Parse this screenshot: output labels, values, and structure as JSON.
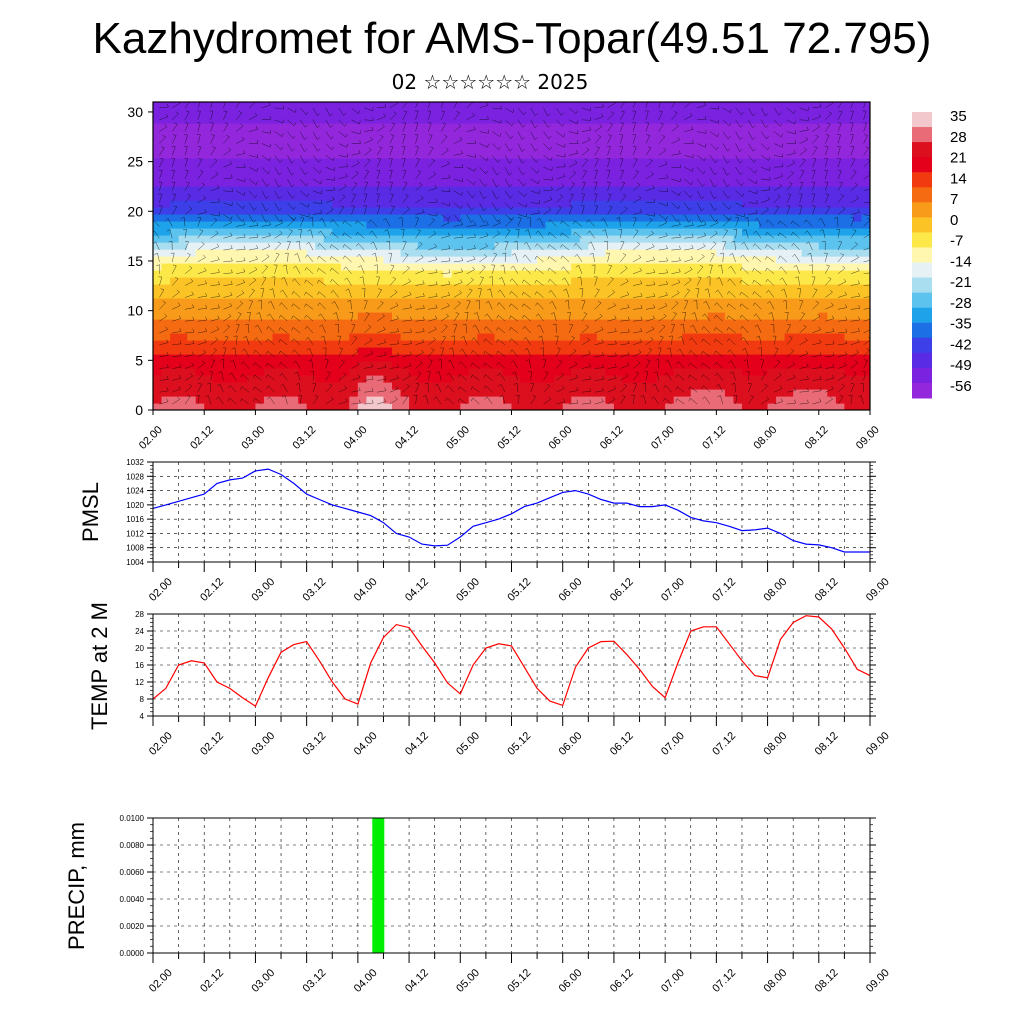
{
  "title": "Kazhydromet for AMS-Topar(49.51 72.795)",
  "subtitle": "02 ☆☆☆☆☆☆ 2025",
  "colors": {
    "pmsl_line": "#0000ff",
    "temp_line": "#ff0000",
    "precip_bar": "#00ee00",
    "frame": "#000000"
  },
  "time_ticks": [
    "02.00",
    "02.12",
    "03.00",
    "03.12",
    "04.00",
    "04.12",
    "05.00",
    "05.12",
    "06.00",
    "06.12",
    "07.00",
    "07.12",
    "08.00",
    "08.12",
    "09.00"
  ],
  "chart_data": [
    {
      "type": "heatmap",
      "name": "cross_section",
      "x": "time_ticks",
      "ylim": [
        0,
        31
      ],
      "yticks": [
        0,
        5,
        10,
        15,
        20,
        25,
        30
      ],
      "colorbar_labels": [
        "35",
        "28",
        "21",
        "14",
        "7",
        "0",
        "-7",
        "-14",
        "-21",
        "-28",
        "-35",
        "-42",
        "-49",
        "-56"
      ],
      "colorbar_colors": [
        "#f2c8cc",
        "#ea6b78",
        "#dc0f1e",
        "#e4001a",
        "#f23a10",
        "#f56b12",
        "#f89a1a",
        "#fbc326",
        "#fde84a",
        "#fff7b0",
        "#e6f1f5",
        "#a9ddf0",
        "#5cc3ef",
        "#1ea3ea",
        "#1d6fe6",
        "#3d3fe8",
        "#5a2be5",
        "#7a22e0",
        "#9327dc"
      ],
      "vertical_profile": [
        {
          "height": 0,
          "value": 28
        },
        {
          "height": 4,
          "value": 22
        },
        {
          "height": 8,
          "value": 10
        },
        {
          "height": 11,
          "value": 3
        },
        {
          "height": 14,
          "value": -7
        },
        {
          "height": 15.5,
          "value": -14
        },
        {
          "height": 18,
          "value": -30
        },
        {
          "height": 20,
          "value": -42
        },
        {
          "height": 23,
          "value": -52
        },
        {
          "height": 26,
          "value": -56
        },
        {
          "height": 31,
          "value": -54
        }
      ],
      "warm_cores": [
        {
          "x": 4.15,
          "value": 35
        },
        {
          "x": 7.6,
          "value": 33
        },
        {
          "x": 8.6,
          "value": 33
        }
      ],
      "has_wind_barbs": true
    },
    {
      "type": "line",
      "name": "pmsl",
      "ylabel": "PMSL",
      "ylim": [
        1004,
        1032
      ],
      "yticks": [
        1004,
        1008,
        1012,
        1016,
        1020,
        1024,
        1028,
        1032
      ],
      "grid": true,
      "x": [
        2.0,
        2.125,
        2.25,
        2.375,
        2.5,
        2.625,
        2.75,
        2.875,
        3.0,
        3.125,
        3.25,
        3.375,
        3.5,
        3.625,
        3.75,
        3.875,
        4.0,
        4.125,
        4.25,
        4.375,
        4.5,
        4.625,
        4.75,
        4.875,
        5.0,
        5.125,
        5.25,
        5.375,
        5.5,
        5.625,
        5.75,
        5.875,
        6.0,
        6.125,
        6.25,
        6.375,
        6.5,
        6.625,
        6.75,
        6.875,
        7.0,
        7.125,
        7.25,
        7.375,
        7.5,
        7.625,
        7.75,
        7.875,
        8.0,
        8.125,
        8.25,
        8.375,
        8.5,
        8.625,
        8.75,
        8.875,
        9.0
      ],
      "series": [
        {
          "values": [
            1019,
            1020,
            1021,
            1022,
            1023,
            1026,
            1027,
            1027.5,
            1029.5,
            1030,
            1028.5,
            1026,
            1023,
            1021.5,
            1020,
            1019,
            1018,
            1017,
            1015,
            1012,
            1011,
            1009,
            1008.5,
            1008.7,
            1011,
            1014,
            1015,
            1016,
            1017.5,
            1019.5,
            1020.5,
            1022,
            1023.5,
            1024,
            1023,
            1021.5,
            1020.5,
            1020.5,
            1019.5,
            1019.5,
            1020,
            1018.5,
            1016.5,
            1015.5,
            1015,
            1014,
            1012.8,
            1013,
            1013.5,
            1012,
            1010,
            1009,
            1008.8,
            1008,
            1006.8,
            1006.8,
            1006.8
          ]
        }
      ]
    },
    {
      "type": "line",
      "name": "temp2m",
      "ylabel": "TEMP at 2 M",
      "ylim": [
        4,
        28
      ],
      "yticks": [
        4,
        8,
        12,
        16,
        20,
        24,
        28
      ],
      "grid": true,
      "x": [
        2.0,
        2.125,
        2.25,
        2.375,
        2.5,
        2.625,
        2.75,
        2.875,
        3.0,
        3.125,
        3.25,
        3.375,
        3.5,
        3.625,
        3.75,
        3.875,
        4.0,
        4.125,
        4.25,
        4.375,
        4.5,
        4.625,
        4.75,
        4.875,
        5.0,
        5.125,
        5.25,
        5.375,
        5.5,
        5.625,
        5.75,
        5.875,
        6.0,
        6.125,
        6.25,
        6.375,
        6.5,
        6.625,
        6.75,
        6.875,
        7.0,
        7.125,
        7.25,
        7.375,
        7.5,
        7.625,
        7.75,
        7.875,
        8.0,
        8.125,
        8.25,
        8.375,
        8.5,
        8.625,
        8.75,
        8.875,
        9.0
      ],
      "series": [
        {
          "values": [
            8,
            10.5,
            16,
            17,
            16.5,
            12,
            10.5,
            8.3,
            6.3,
            13,
            19,
            20.8,
            21.5,
            17,
            12,
            8,
            6.8,
            16.5,
            22.5,
            25.5,
            24.8,
            20.5,
            16.5,
            11.8,
            9.2,
            16,
            20,
            21,
            20.5,
            15.5,
            10.5,
            7.5,
            6.5,
            15.5,
            20,
            21.5,
            21.6,
            18.5,
            15,
            11,
            8.3,
            16.5,
            24,
            25,
            25,
            21,
            17,
            13.5,
            13,
            22,
            26,
            27.6,
            27.3,
            24.5,
            20,
            15,
            13.5
          ]
        }
      ]
    },
    {
      "type": "bar",
      "name": "precip",
      "ylabel": "PRECIP, mm",
      "ylim": [
        0,
        0.01
      ],
      "yticks": [
        "0.0000",
        "0.0020",
        "0.0040",
        "0.0060",
        "0.0080",
        "0.0100"
      ],
      "grid": true,
      "x": [
        4.2
      ],
      "values": [
        0.01
      ]
    }
  ]
}
